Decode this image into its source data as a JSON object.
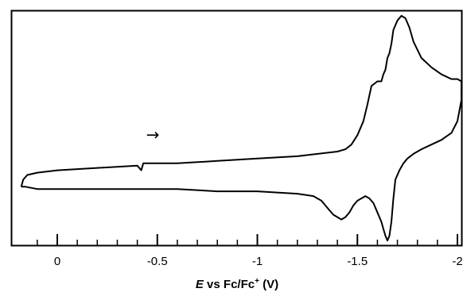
{
  "chart_data": {
    "type": "line",
    "title": "",
    "xlabel": {
      "italic_part": "E",
      "rest": " vs  Fc/Fc",
      "superscript": "+",
      "unit": " (V)"
    },
    "ylabel": "",
    "x_direction": "reversed",
    "xlim": [
      0.2,
      -2.02
    ],
    "ylim": [
      0,
      1
    ],
    "x_ticks": [
      0,
      -0.5,
      -1,
      -1.5,
      -2
    ],
    "x_tick_labels": [
      "0",
      "-0.5",
      "-1",
      "-1.5",
      "-2"
    ],
    "y_tick_labels": [],
    "grid": false,
    "legend": "none",
    "annotations": [
      {
        "type": "arrow",
        "text": "→",
        "x": -0.5,
        "y": 0.45
      }
    ],
    "series": [
      {
        "values_note": "",
        "x": [
          0.18,
          0.17,
          0.15,
          0.1,
          0.0,
          -0.2,
          -0.4,
          -0.42,
          -0.43,
          -0.6,
          -0.8,
          -1.0,
          -1.2,
          -1.4,
          -1.44,
          -1.47,
          -1.5,
          -1.53,
          -1.55,
          -1.57,
          -1.6,
          -1.62,
          -1.63,
          -1.64,
          -1.65,
          -1.66,
          -1.67,
          -1.68,
          -1.7,
          -1.72,
          -1.74,
          -1.76,
          -1.78,
          -1.82,
          -1.87,
          -1.92,
          -1.97,
          -2.0,
          -2.02,
          -2.02,
          -2.0,
          -1.97,
          -1.92,
          -1.87,
          -1.82,
          -1.78,
          -1.75,
          -1.73,
          -1.71,
          -1.69,
          -1.68,
          -1.67,
          -1.66,
          -1.65,
          -1.64,
          -1.63,
          -1.62,
          -1.6,
          -1.58,
          -1.56,
          -1.54,
          -1.52,
          -1.5,
          -1.48,
          -1.46,
          -1.44,
          -1.42,
          -1.4,
          -1.38,
          -1.36,
          -1.34,
          -1.32,
          -1.3,
          -1.28,
          -1.2,
          -1.0,
          -0.8,
          -0.6,
          -0.45,
          -0.4,
          -0.2,
          0.0,
          0.1,
          0.16,
          0.18
        ],
        "y": [
          0.25,
          0.28,
          0.3,
          0.31,
          0.32,
          0.33,
          0.34,
          0.32,
          0.35,
          0.35,
          0.36,
          0.37,
          0.38,
          0.4,
          0.41,
          0.43,
          0.47,
          0.53,
          0.6,
          0.68,
          0.7,
          0.7,
          0.73,
          0.75,
          0.8,
          0.82,
          0.86,
          0.92,
          0.96,
          0.98,
          0.97,
          0.93,
          0.87,
          0.8,
          0.76,
          0.73,
          0.71,
          0.71,
          0.7,
          0.62,
          0.53,
          0.48,
          0.45,
          0.43,
          0.41,
          0.39,
          0.37,
          0.35,
          0.32,
          0.28,
          0.2,
          0.1,
          0.04,
          0.02,
          0.04,
          0.07,
          0.1,
          0.14,
          0.18,
          0.2,
          0.21,
          0.2,
          0.19,
          0.17,
          0.14,
          0.12,
          0.11,
          0.12,
          0.13,
          0.15,
          0.17,
          0.19,
          0.2,
          0.21,
          0.22,
          0.23,
          0.23,
          0.24,
          0.24,
          0.24,
          0.24,
          0.24,
          0.24,
          0.25,
          0.25
        ]
      }
    ]
  }
}
